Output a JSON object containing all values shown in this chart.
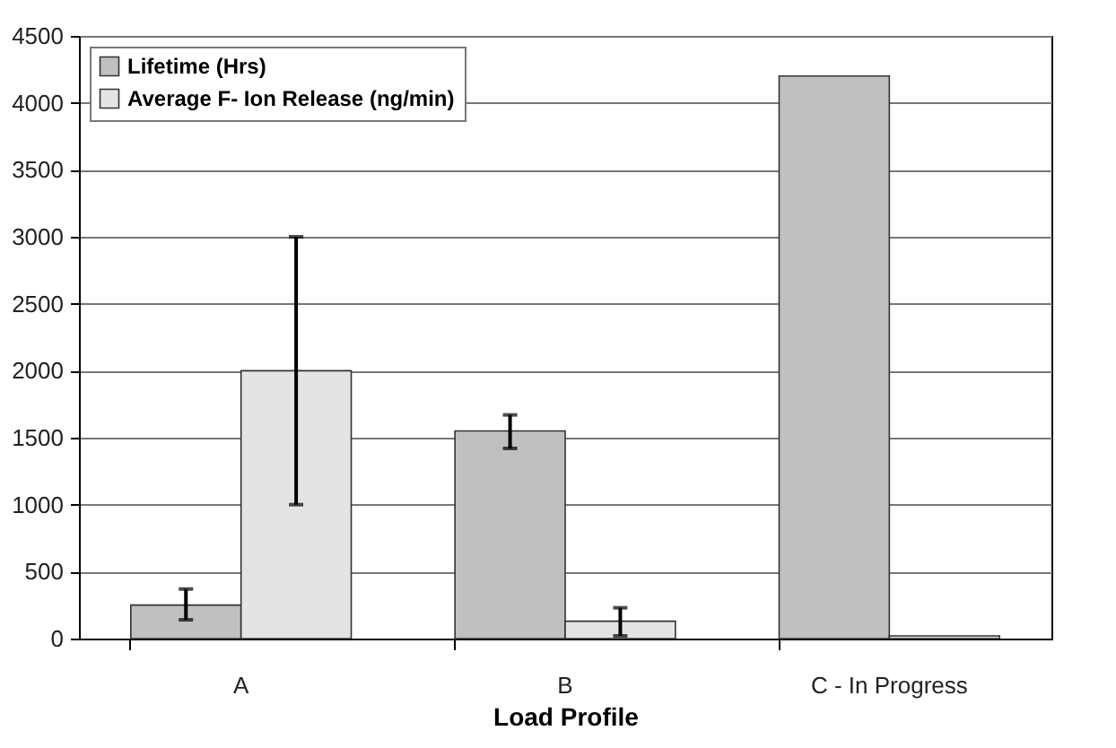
{
  "chart_data": {
    "type": "bar",
    "xlabel": "Load Profile",
    "categories": [
      "A",
      "B",
      "C - In Progress"
    ],
    "series": [
      {
        "name": "Lifetime (Hrs)",
        "color": "#c0c0c0",
        "values": [
          250,
          1550,
          4200
        ],
        "errors": [
          [
            140,
            370
          ],
          [
            1420,
            1670
          ],
          null
        ]
      },
      {
        "name": "Average F- Ion Release (ng/min)",
        "color": "#e4e4e4",
        "values": [
          2000,
          130,
          20
        ],
        "errors": [
          [
            1000,
            3000
          ],
          [
            20,
            230
          ],
          null
        ]
      }
    ],
    "ylim": [
      0,
      4500
    ],
    "yticks": [
      0,
      500,
      1000,
      1500,
      2000,
      2500,
      3000,
      3500,
      4000,
      4500
    ],
    "grid": "y",
    "legend": "top left"
  }
}
